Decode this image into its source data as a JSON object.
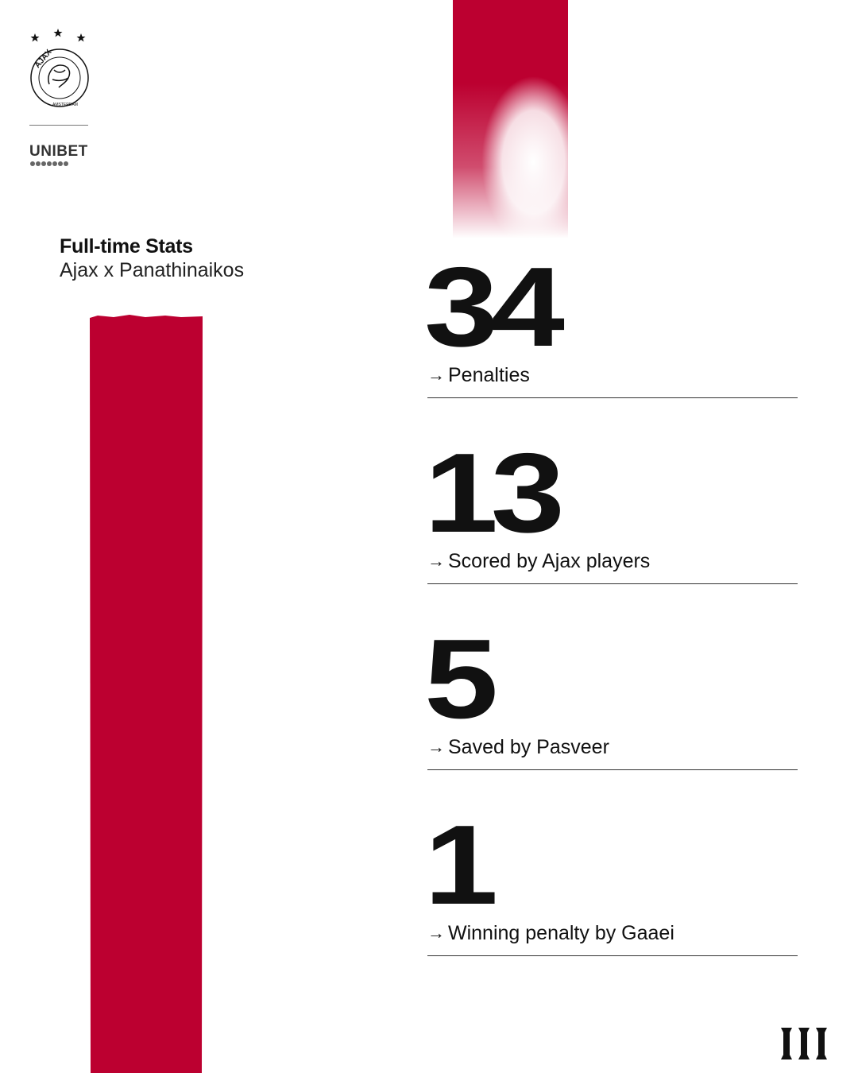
{
  "branding": {
    "crest_name": "AJAX",
    "crest_city": "AMSTERDAM",
    "sponsor": "UNIBET",
    "colors": {
      "red": "#BC0030",
      "text": "#111111",
      "background": "#FFFFFF"
    }
  },
  "header": {
    "title": "Full-time Stats",
    "subtitle": "Ajax x Panathinaikos"
  },
  "stats": [
    {
      "value": "34",
      "label": "Penalties"
    },
    {
      "value": "13",
      "label": "Scored by Ajax players"
    },
    {
      "value": "5",
      "label": "Saved by Pasveer"
    },
    {
      "value": "1",
      "label": "Winning penalty by Gaaei"
    }
  ],
  "icons": {
    "arrow": "→",
    "crest": "ajax-crest-icon",
    "stars": "three-stars-icon"
  }
}
